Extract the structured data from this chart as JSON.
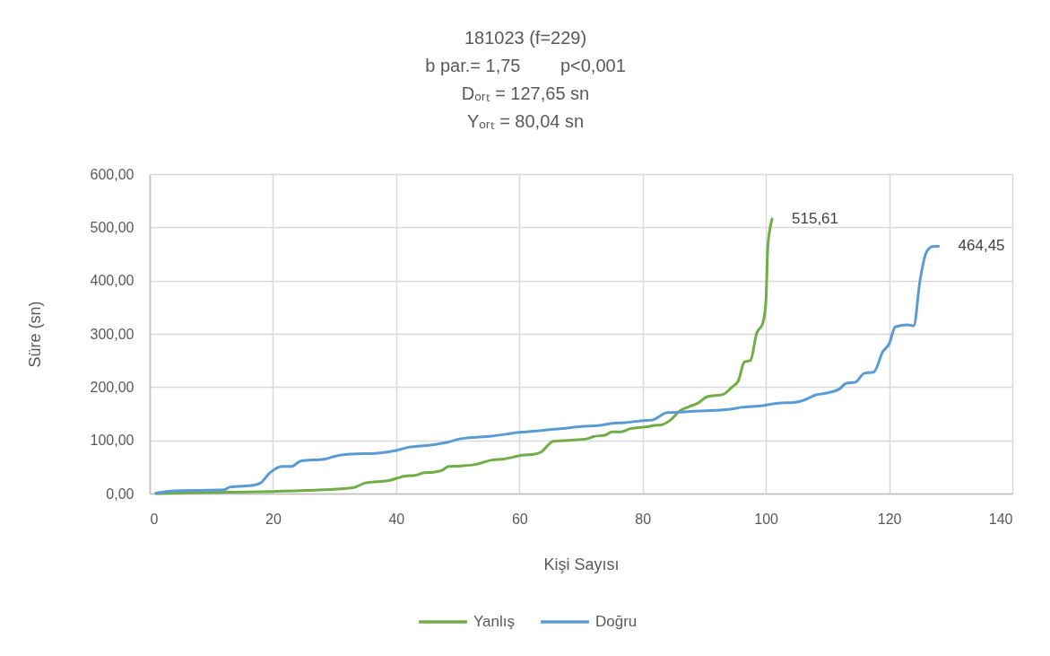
{
  "chart_data": {
    "type": "line",
    "title": "181023 (f=229)\nb par.= 1,75        p<0,001\nDₒᵣₜ = 127,65 sn\nYₒᵣₜ = 80,04 sn",
    "xlabel": "Kişi Sayısı",
    "ylabel": "Süre (sn)",
    "series": [
      {
        "name": "Yanlış",
        "color": "#70ad47",
        "x": [
          1,
          10,
          20,
          28,
          33,
          35,
          39,
          41.5,
          43,
          44.5,
          46,
          47.5,
          48.5,
          50.5,
          53,
          55.5,
          57.5,
          60.5,
          62.5,
          63.5,
          65.5,
          68,
          71,
          72,
          74,
          75,
          76.5,
          78,
          80.5,
          82,
          83,
          84.5,
          86,
          87.5,
          89,
          90.5,
          93,
          94.5,
          95.5,
          96.5,
          97.5,
          98.5,
          99.5,
          100,
          100.3,
          100.7,
          101
        ],
        "values": [
          0,
          2,
          4,
          7,
          11,
          20,
          25,
          33,
          34,
          39,
          40,
          44,
          51,
          52,
          55,
          63,
          65,
          72,
          74,
          78,
          98,
          100,
          103,
          107,
          110,
          116,
          116,
          122,
          125,
          128,
          129,
          138,
          155,
          163,
          170,
          182,
          186,
          200,
          211,
          247,
          250,
          301,
          320,
          360,
          461,
          500,
          515.61
        ]
      },
      {
        "name": "Doğru",
        "color": "#5b9bd5",
        "x": [
          1,
          4,
          8,
          12,
          13,
          17,
          18,
          19.5,
          21.5,
          23,
          24.5,
          28.5,
          30,
          32.5,
          37,
          40,
          42,
          45.5,
          48.5,
          50.5,
          55.5,
          60,
          64,
          67,
          70,
          73,
          75,
          77,
          80,
          81.5,
          84,
          86,
          89,
          94,
          96,
          99.5,
          102,
          104.5,
          106.5,
          108,
          109.5,
          112,
          113,
          114.5,
          116,
          117.5,
          119,
          120,
          121,
          123,
          124,
          125,
          126,
          127,
          128
        ],
        "values": [
          1,
          5,
          6,
          7,
          12,
          16,
          20,
          39,
          51,
          51,
          61,
          65,
          70,
          74,
          76,
          81,
          87,
          91,
          97,
          103,
          108,
          115,
          119,
          122,
          126,
          128,
          132,
          133,
          137,
          138,
          152,
          153,
          155,
          158,
          162,
          165,
          170,
          171,
          177,
          185,
          188,
          197,
          207,
          209,
          226,
          228,
          267,
          281,
          313,
          317,
          315,
          399,
          452,
          464,
          464.45
        ]
      }
    ],
    "annotations": [
      {
        "text": "515,61",
        "x": 101,
        "y": 515.61
      },
      {
        "text": "464,45",
        "x": 128,
        "y": 464.45
      }
    ],
    "xlim": [
      0,
      140
    ],
    "xticks": [
      0,
      20,
      40,
      60,
      80,
      100,
      120,
      140
    ],
    "ylim": [
      0,
      600
    ],
    "yticks": [
      {
        "value": 0,
        "label": "0,00"
      },
      {
        "value": 100,
        "label": "100,00"
      },
      {
        "value": 200,
        "label": "200,00"
      },
      {
        "value": 300,
        "label": "300,00"
      },
      {
        "value": 400,
        "label": "400,00"
      },
      {
        "value": 500,
        "label": "500,00"
      },
      {
        "value": 600,
        "label": "600,00"
      }
    ],
    "grid": true,
    "legend": "bottom"
  }
}
